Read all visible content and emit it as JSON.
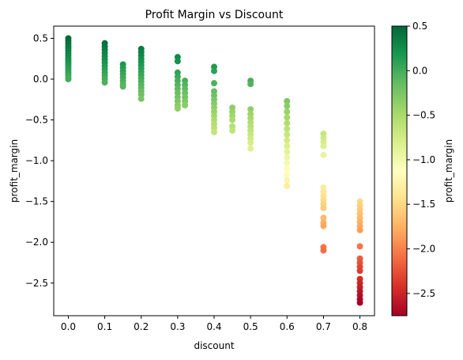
{
  "chart_data": {
    "type": "scatter",
    "title": "Profit Margin vs Discount",
    "xlabel": "discount",
    "ylabel": "profit_margin",
    "xlim": [
      -0.04,
      0.84
    ],
    "ylim": [
      -2.9,
      0.65
    ],
    "xticks": [
      0.0,
      0.1,
      0.2,
      0.3,
      0.4,
      0.5,
      0.6,
      0.7,
      0.8
    ],
    "xtick_labels": [
      "0.0",
      "0.1",
      "0.2",
      "0.3",
      "0.4",
      "0.5",
      "0.6",
      "0.7",
      "0.8"
    ],
    "yticks": [
      0.5,
      0.0,
      -0.5,
      -1.0,
      -1.5,
      -2.0,
      -2.5
    ],
    "ytick_labels": [
      "0.5",
      "0.0",
      "−0.5",
      "−1.0",
      "−1.5",
      "−2.0",
      "−2.5"
    ],
    "grid": false,
    "colormap": "RdYlGn",
    "colormap_stops": [
      "#a50026",
      "#d73027",
      "#f46d43",
      "#fdae61",
      "#fee08b",
      "#ffffbf",
      "#d9ef8b",
      "#a6d96a",
      "#66bd63",
      "#1a9850",
      "#006837"
    ],
    "colorbar": {
      "label": "profit_margin",
      "range": [
        -2.75,
        0.5
      ],
      "ticks": [
        0.5,
        0.0,
        -0.5,
        -1.0,
        -1.5,
        -2.0,
        -2.5
      ],
      "tick_labels": [
        "0.5",
        "0.0",
        "−0.5",
        "−1.0",
        "−1.5",
        "−2.0",
        "−2.5"
      ]
    },
    "points": [
      {
        "x": 0.0,
        "y": 0.5
      },
      {
        "x": 0.0,
        "y": 0.47
      },
      {
        "x": 0.0,
        "y": 0.44
      },
      {
        "x": 0.0,
        "y": 0.41
      },
      {
        "x": 0.0,
        "y": 0.38
      },
      {
        "x": 0.0,
        "y": 0.35
      },
      {
        "x": 0.0,
        "y": 0.32
      },
      {
        "x": 0.0,
        "y": 0.29
      },
      {
        "x": 0.0,
        "y": 0.26
      },
      {
        "x": 0.0,
        "y": 0.23
      },
      {
        "x": 0.0,
        "y": 0.2
      },
      {
        "x": 0.0,
        "y": 0.17
      },
      {
        "x": 0.0,
        "y": 0.14
      },
      {
        "x": 0.0,
        "y": 0.11
      },
      {
        "x": 0.0,
        "y": 0.08
      },
      {
        "x": 0.0,
        "y": 0.05
      },
      {
        "x": 0.0,
        "y": 0.02
      },
      {
        "x": 0.0,
        "y": 0.0
      },
      {
        "x": 0.1,
        "y": 0.44
      },
      {
        "x": 0.1,
        "y": 0.4
      },
      {
        "x": 0.1,
        "y": 0.36
      },
      {
        "x": 0.1,
        "y": 0.32
      },
      {
        "x": 0.1,
        "y": 0.28
      },
      {
        "x": 0.1,
        "y": 0.24
      },
      {
        "x": 0.1,
        "y": 0.2
      },
      {
        "x": 0.1,
        "y": 0.16
      },
      {
        "x": 0.1,
        "y": 0.12
      },
      {
        "x": 0.1,
        "y": 0.08
      },
      {
        "x": 0.1,
        "y": 0.04
      },
      {
        "x": 0.1,
        "y": 0.0
      },
      {
        "x": 0.1,
        "y": -0.04
      },
      {
        "x": 0.15,
        "y": 0.18
      },
      {
        "x": 0.15,
        "y": 0.14
      },
      {
        "x": 0.15,
        "y": 0.1
      },
      {
        "x": 0.15,
        "y": 0.06
      },
      {
        "x": 0.15,
        "y": 0.02
      },
      {
        "x": 0.15,
        "y": -0.02
      },
      {
        "x": 0.15,
        "y": -0.06
      },
      {
        "x": 0.15,
        "y": -0.09
      },
      {
        "x": 0.2,
        "y": 0.37
      },
      {
        "x": 0.2,
        "y": 0.33
      },
      {
        "x": 0.2,
        "y": 0.29
      },
      {
        "x": 0.2,
        "y": 0.25
      },
      {
        "x": 0.2,
        "y": 0.21
      },
      {
        "x": 0.2,
        "y": 0.17
      },
      {
        "x": 0.2,
        "y": 0.13
      },
      {
        "x": 0.2,
        "y": 0.09
      },
      {
        "x": 0.2,
        "y": 0.05
      },
      {
        "x": 0.2,
        "y": 0.01
      },
      {
        "x": 0.2,
        "y": -0.03
      },
      {
        "x": 0.2,
        "y": -0.07
      },
      {
        "x": 0.2,
        "y": -0.11
      },
      {
        "x": 0.2,
        "y": -0.15
      },
      {
        "x": 0.2,
        "y": -0.19
      },
      {
        "x": 0.2,
        "y": -0.24
      },
      {
        "x": 0.3,
        "y": 0.27
      },
      {
        "x": 0.3,
        "y": 0.22
      },
      {
        "x": 0.3,
        "y": 0.08
      },
      {
        "x": 0.3,
        "y": 0.03
      },
      {
        "x": 0.3,
        "y": -0.02
      },
      {
        "x": 0.3,
        "y": -0.07
      },
      {
        "x": 0.3,
        "y": -0.12
      },
      {
        "x": 0.3,
        "y": -0.17
      },
      {
        "x": 0.3,
        "y": -0.22
      },
      {
        "x": 0.3,
        "y": -0.27
      },
      {
        "x": 0.3,
        "y": -0.32
      },
      {
        "x": 0.3,
        "y": -0.36
      },
      {
        "x": 0.32,
        "y": -0.02
      },
      {
        "x": 0.32,
        "y": -0.07
      },
      {
        "x": 0.32,
        "y": -0.12
      },
      {
        "x": 0.32,
        "y": -0.17
      },
      {
        "x": 0.32,
        "y": -0.22
      },
      {
        "x": 0.32,
        "y": -0.27
      },
      {
        "x": 0.32,
        "y": -0.32
      },
      {
        "x": 0.4,
        "y": 0.15
      },
      {
        "x": 0.4,
        "y": 0.1
      },
      {
        "x": 0.4,
        "y": -0.05
      },
      {
        "x": 0.4,
        "y": -0.15
      },
      {
        "x": 0.4,
        "y": -0.2
      },
      {
        "x": 0.4,
        "y": -0.25
      },
      {
        "x": 0.4,
        "y": -0.3
      },
      {
        "x": 0.4,
        "y": -0.35
      },
      {
        "x": 0.4,
        "y": -0.4
      },
      {
        "x": 0.4,
        "y": -0.45
      },
      {
        "x": 0.4,
        "y": -0.5
      },
      {
        "x": 0.4,
        "y": -0.55
      },
      {
        "x": 0.4,
        "y": -0.6
      },
      {
        "x": 0.4,
        "y": -0.65
      },
      {
        "x": 0.45,
        "y": -0.35
      },
      {
        "x": 0.45,
        "y": -0.4
      },
      {
        "x": 0.45,
        "y": -0.45
      },
      {
        "x": 0.45,
        "y": -0.5
      },
      {
        "x": 0.45,
        "y": -0.58
      },
      {
        "x": 0.45,
        "y": -0.63
      },
      {
        "x": 0.5,
        "y": -0.02
      },
      {
        "x": 0.5,
        "y": -0.06
      },
      {
        "x": 0.5,
        "y": -0.37
      },
      {
        "x": 0.5,
        "y": -0.43
      },
      {
        "x": 0.5,
        "y": -0.48
      },
      {
        "x": 0.5,
        "y": -0.53
      },
      {
        "x": 0.5,
        "y": -0.58
      },
      {
        "x": 0.5,
        "y": -0.63
      },
      {
        "x": 0.5,
        "y": -0.68
      },
      {
        "x": 0.5,
        "y": -0.73
      },
      {
        "x": 0.5,
        "y": -0.78
      },
      {
        "x": 0.5,
        "y": -0.85
      },
      {
        "x": 0.6,
        "y": -0.27
      },
      {
        "x": 0.6,
        "y": -0.33
      },
      {
        "x": 0.6,
        "y": -0.4
      },
      {
        "x": 0.6,
        "y": -0.47
      },
      {
        "x": 0.6,
        "y": -0.54
      },
      {
        "x": 0.6,
        "y": -0.61
      },
      {
        "x": 0.6,
        "y": -0.68
      },
      {
        "x": 0.6,
        "y": -0.75
      },
      {
        "x": 0.6,
        "y": -0.82
      },
      {
        "x": 0.6,
        "y": -0.89
      },
      {
        "x": 0.6,
        "y": -0.96
      },
      {
        "x": 0.6,
        "y": -1.03
      },
      {
        "x": 0.6,
        "y": -1.1
      },
      {
        "x": 0.6,
        "y": -1.17
      },
      {
        "x": 0.6,
        "y": -1.24
      },
      {
        "x": 0.6,
        "y": -1.31
      },
      {
        "x": 0.7,
        "y": -0.67
      },
      {
        "x": 0.7,
        "y": -0.72
      },
      {
        "x": 0.7,
        "y": -0.77
      },
      {
        "x": 0.7,
        "y": -0.82
      },
      {
        "x": 0.7,
        "y": -0.93
      },
      {
        "x": 0.7,
        "y": -1.33
      },
      {
        "x": 0.7,
        "y": -1.38
      },
      {
        "x": 0.7,
        "y": -1.43
      },
      {
        "x": 0.7,
        "y": -1.48
      },
      {
        "x": 0.7,
        "y": -1.53
      },
      {
        "x": 0.7,
        "y": -1.58
      },
      {
        "x": 0.7,
        "y": -1.7
      },
      {
        "x": 0.7,
        "y": -1.76
      },
      {
        "x": 0.7,
        "y": -1.8
      },
      {
        "x": 0.7,
        "y": -2.06
      },
      {
        "x": 0.7,
        "y": -2.1
      },
      {
        "x": 0.8,
        "y": -1.5
      },
      {
        "x": 0.8,
        "y": -1.55
      },
      {
        "x": 0.8,
        "y": -1.6
      },
      {
        "x": 0.8,
        "y": -1.65
      },
      {
        "x": 0.8,
        "y": -1.7
      },
      {
        "x": 0.8,
        "y": -1.75
      },
      {
        "x": 0.8,
        "y": -1.8
      },
      {
        "x": 0.8,
        "y": -1.85
      },
      {
        "x": 0.8,
        "y": -2.05
      },
      {
        "x": 0.8,
        "y": -2.2
      },
      {
        "x": 0.8,
        "y": -2.25
      },
      {
        "x": 0.8,
        "y": -2.3
      },
      {
        "x": 0.8,
        "y": -2.35
      },
      {
        "x": 0.8,
        "y": -2.45
      },
      {
        "x": 0.8,
        "y": -2.5
      },
      {
        "x": 0.8,
        "y": -2.55
      },
      {
        "x": 0.8,
        "y": -2.6
      },
      {
        "x": 0.8,
        "y": -2.65
      },
      {
        "x": 0.8,
        "y": -2.7
      },
      {
        "x": 0.8,
        "y": -2.74
      }
    ]
  }
}
